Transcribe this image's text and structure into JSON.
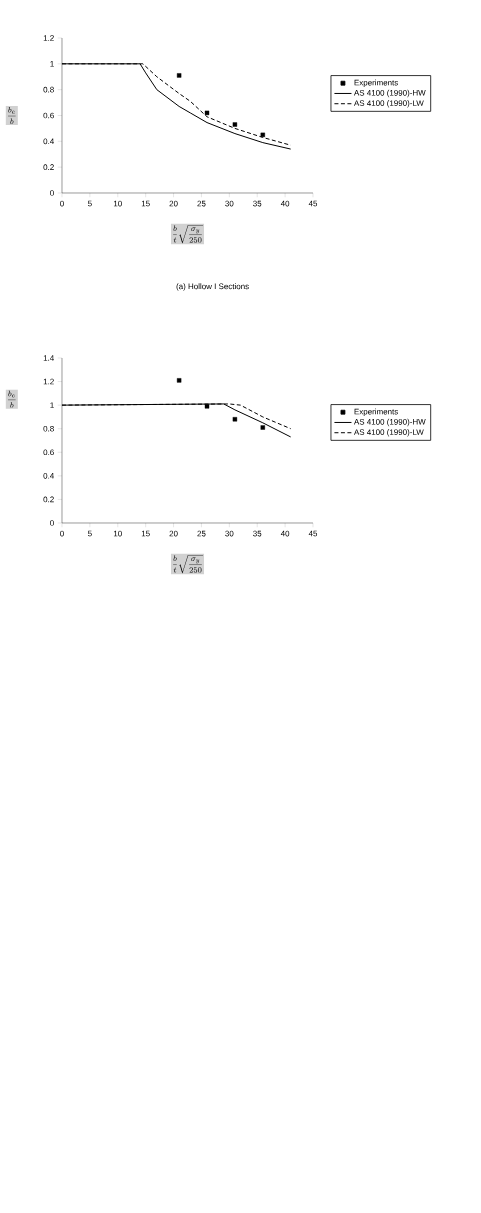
{
  "chart_data": [
    {
      "type": "line",
      "xlabel": "\\frac{b}{t}\\sqrt{\\frac{\\sigma_y}{250}}",
      "ylabel": "\\frac{b_e}{b}",
      "annotations": [
        "(a)  Hollow I Sections"
      ],
      "xlim": [
        0,
        45
      ],
      "xticks": [
        0,
        5,
        10,
        15,
        20,
        25,
        30,
        35,
        40,
        45
      ],
      "ylim": [
        0,
        1.2
      ],
      "yticks": [
        0,
        0.2,
        0.4,
        0.6,
        0.8,
        1,
        1.2
      ],
      "legend": "right",
      "grid": false,
      "series": [
        {
          "name": "Experiments",
          "type": "scatter",
          "marker": "square",
          "color": "#000000",
          "x": [
            21,
            26,
            31,
            36
          ],
          "values": [
            0.91,
            0.62,
            0.53,
            0.45
          ]
        },
        {
          "name": "AS 4100 (1990)-HW",
          "type": "line",
          "marker": "none",
          "line_style": "solid",
          "color": "#000000",
          "x": [
            0,
            14,
            15,
            17,
            21,
            23,
            26,
            31,
            36,
            41
          ],
          "values": [
            1,
            1,
            0.93,
            0.8,
            0.67,
            0.62,
            0.545,
            0.46,
            0.39,
            0.34
          ]
        },
        {
          "name": "AS 4100 (1990)-LW",
          "type": "line",
          "marker": "none",
          "line_style": "dashed",
          "color": "#000000",
          "x": [
            0,
            14.5,
            17,
            21,
            23,
            26,
            31,
            36,
            41
          ],
          "values": [
            1,
            1,
            0.9,
            0.77,
            0.71,
            0.59,
            0.5,
            0.43,
            0.37
          ]
        }
      ]
    },
    {
      "type": "line",
      "xlabel": "\\frac{b}{t}\\sqrt{\\frac{\\sigma_y}{250}}",
      "ylabel": "\\frac{b_e}{b}",
      "xlim": [
        0,
        45
      ],
      "xticks": [
        0,
        5,
        10,
        15,
        20,
        25,
        30,
        35,
        40,
        45
      ],
      "ylim": [
        0,
        1.4
      ],
      "yticks": [
        0,
        0.2,
        0.4,
        0.6,
        0.8,
        1,
        1.2,
        1.4
      ],
      "legend": "right",
      "grid": false,
      "series": [
        {
          "name": "Experiments",
          "type": "scatter",
          "marker": "square",
          "color": "#000000",
          "x": [
            21,
            26,
            31,
            36
          ],
          "values": [
            1.21,
            0.99,
            0.88,
            0.81
          ]
        },
        {
          "name": "AS 4100 (1990)-HW",
          "type": "line",
          "marker": "none",
          "line_style": "solid",
          "color": "#000000",
          "x": [
            0,
            29,
            31,
            36,
            41
          ],
          "values": [
            1,
            1.01,
            0.96,
            0.85,
            0.73
          ]
        },
        {
          "name": "AS 4100 (1990)-LW",
          "type": "line",
          "marker": "none",
          "line_style": "dashed",
          "color": "#000000",
          "x": [
            0,
            30,
            32,
            36,
            41
          ],
          "values": [
            1,
            1.01,
            1.0,
            0.9,
            0.8
          ]
        }
      ]
    }
  ]
}
